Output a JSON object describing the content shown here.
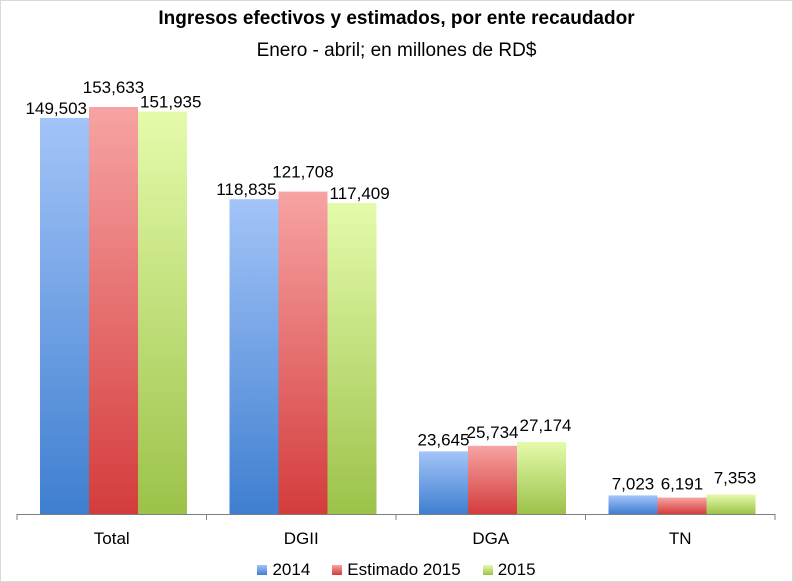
{
  "chart_data": {
    "type": "bar",
    "title": "Ingresos efectivos y estimados, por ente recaudador",
    "subtitle": "Enero - abril; en millones de RD$",
    "categories": [
      "Total",
      "DGII",
      "DGA",
      "TN"
    ],
    "series": [
      {
        "name": "2014",
        "values": [
          149503,
          118835,
          23645,
          7023
        ],
        "labels": [
          "149,503",
          "118,835",
          "23,645",
          "7,023"
        ],
        "color_top": "#a3c4f8",
        "color_bottom": "#3f7fd0"
      },
      {
        "name": "Estimado 2015",
        "values": [
          153633,
          121708,
          25734,
          6191
        ],
        "labels": [
          "153,633",
          "121,708",
          "25,734",
          "6,191"
        ],
        "color_top": "#f7a3a3",
        "color_bottom": "#d43c3c"
      },
      {
        "name": "2015",
        "values": [
          151935,
          117409,
          27174,
          7353
        ],
        "labels": [
          "151,935",
          "117,409",
          "27,174",
          "7,353"
        ],
        "color_top": "#e4fbab",
        "color_bottom": "#9cc24a"
      }
    ],
    "ylim": [
      0,
      160000
    ],
    "grid": false,
    "legend": "bottom"
  }
}
